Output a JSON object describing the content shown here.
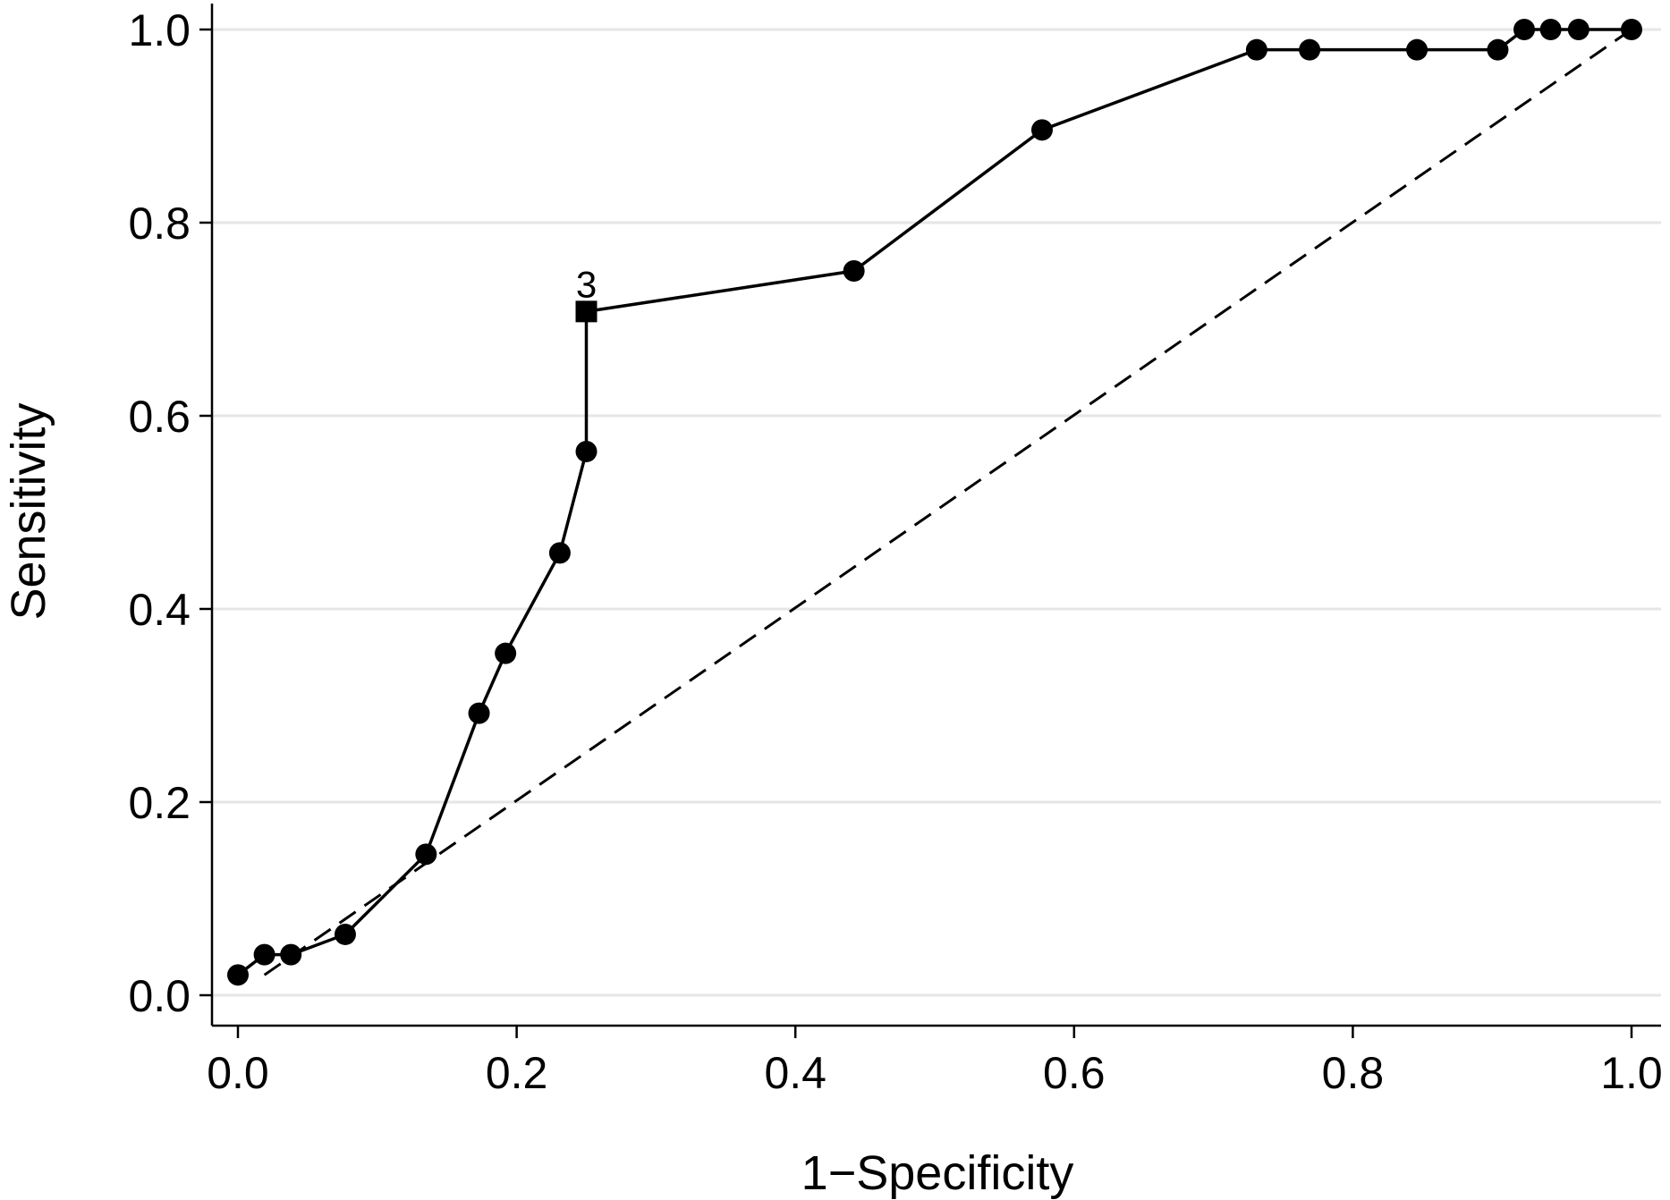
{
  "chart_data": {
    "type": "line",
    "title": "",
    "xlabel": "1−Specificity",
    "ylabel": "Sensitivity",
    "xlim": [
      0,
      1
    ],
    "ylim": [
      0,
      1
    ],
    "grid": "horizontal",
    "colors": {
      "line": "#000000",
      "grid": "#e6e6e6",
      "reference": "#000000"
    },
    "x_ticks": [
      "0.0",
      "0.2",
      "0.4",
      "0.6",
      "0.8",
      "1.0"
    ],
    "y_ticks": [
      "0.0",
      "0.2",
      "0.4",
      "0.6",
      "0.8",
      "1.0"
    ],
    "series": [
      {
        "marker": "circle",
        "points": [
          {
            "x": 0.0,
            "y": 0.021
          },
          {
            "x": 0.019,
            "y": 0.042
          },
          {
            "x": 0.038,
            "y": 0.042
          },
          {
            "x": 0.077,
            "y": 0.063
          },
          {
            "x": 0.135,
            "y": 0.146
          },
          {
            "x": 0.173,
            "y": 0.292
          },
          {
            "x": 0.192,
            "y": 0.354
          },
          {
            "x": 0.231,
            "y": 0.458
          },
          {
            "x": 0.25,
            "y": 0.563
          },
          {
            "x": 0.25,
            "y": 0.708,
            "marker": "square",
            "label": "3"
          },
          {
            "x": 0.442,
            "y": 0.75
          },
          {
            "x": 0.577,
            "y": 0.896
          },
          {
            "x": 0.731,
            "y": 0.979
          },
          {
            "x": 0.769,
            "y": 0.979
          },
          {
            "x": 0.846,
            "y": 0.979
          },
          {
            "x": 0.904,
            "y": 0.979
          },
          {
            "x": 0.923,
            "y": 1.0
          },
          {
            "x": 0.942,
            "y": 1.0
          },
          {
            "x": 0.962,
            "y": 1.0
          },
          {
            "x": 1.0,
            "y": 1.0
          }
        ]
      }
    ],
    "reference_line": {
      "style": "dashed",
      "points": [
        {
          "x": 0.019,
          "y": 0.021
        },
        {
          "x": 1.0,
          "y": 1.0
        }
      ]
    }
  }
}
